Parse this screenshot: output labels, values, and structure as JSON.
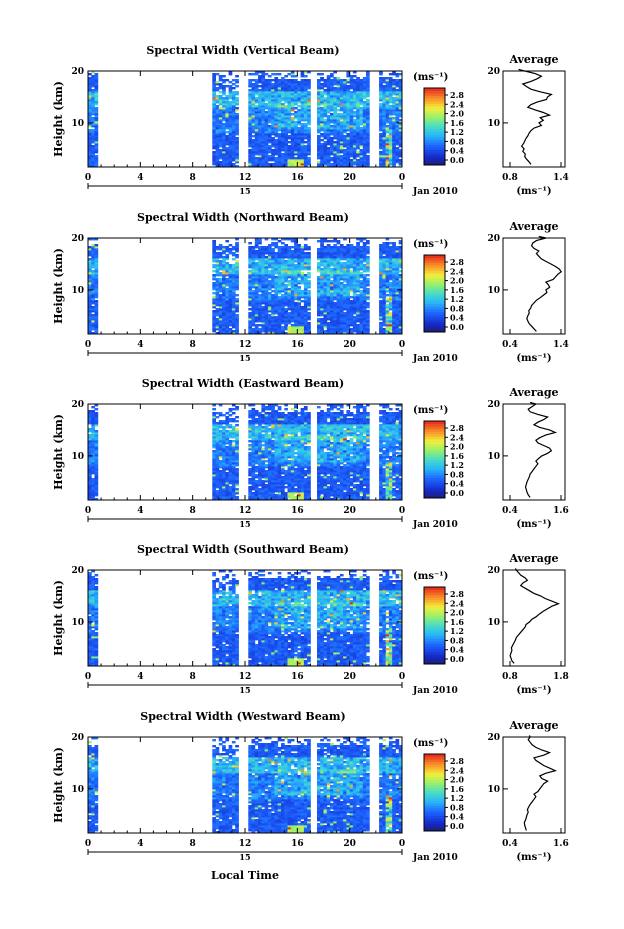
{
  "figure": {
    "xlabel": "Local Time",
    "date_label": "Jan 2010",
    "day_label": "15",
    "unit_label": "(ms⁻¹)",
    "ylabel": "Height (km)",
    "avg_title": "Average"
  },
  "chart_data": [
    {
      "type": "heatmap",
      "title": "Spectral Width (Vertical Beam)",
      "xlabel": "Local Time",
      "ylabel": "Height (km)",
      "x_ticks": [
        "0",
        "4",
        "8",
        "12",
        "16",
        "20",
        "0"
      ],
      "x_range_hours": [
        0,
        24
      ],
      "y_ticks": [
        "10",
        "20"
      ],
      "y_range_km": [
        1.5,
        20
      ],
      "colorbar": {
        "label": "(ms⁻¹)",
        "ticks": [
          "0.0",
          "0.4",
          "0.8",
          "1.2",
          "1.6",
          "2.0",
          "2.4",
          "2.8"
        ],
        "range": [
          0,
          3
        ]
      },
      "data_gaps_hours": [
        [
          0.8,
          9.5
        ],
        [
          11.6,
          12.2
        ],
        [
          17.0,
          17.6
        ],
        [
          21.6,
          22.2
        ]
      ],
      "average_profile": {
        "title": "Average",
        "xlabel": "(ms⁻¹)",
        "x_ticks": [
          "0.8",
          "1.4"
        ],
        "x_range": [
          0.6,
          1.6
        ],
        "y_ticks": [
          "10",
          "20"
        ],
        "x": [
          1.05,
          1.02,
          0.98,
          0.95,
          0.96,
          0.92,
          0.94,
          0.9,
          0.93,
          0.95,
          0.97,
          1.0,
          1.02,
          1.05,
          1.1,
          1.22,
          1.18,
          1.25,
          1.2,
          1.35,
          1.25,
          1.12,
          1.0,
          1.05,
          1.15,
          1.3,
          1.32,
          1.38,
          1.2,
          1.05,
          0.98,
          0.92,
          1.05,
          1.15,
          1.22,
          1.12,
          0.95,
          0.85
        ],
        "y": [
          2,
          2.5,
          3,
          3.5,
          4,
          4.5,
          5,
          5.5,
          6,
          6.5,
          7,
          7.5,
          8,
          8.5,
          9,
          9.5,
          10,
          10.5,
          11,
          11.5,
          12,
          12.5,
          13,
          13.5,
          14,
          14.5,
          15,
          15.5,
          16,
          16.5,
          17,
          17.5,
          18,
          18.5,
          19,
          19.5,
          20,
          20.3
        ]
      }
    },
    {
      "type": "heatmap",
      "title": "Spectral Width (Northward Beam)",
      "xlabel": "Local Time",
      "ylabel": "Height (km)",
      "x_ticks": [
        "0",
        "4",
        "8",
        "12",
        "16",
        "20",
        "0"
      ],
      "x_range_hours": [
        0,
        24
      ],
      "y_ticks": [
        "10",
        "20"
      ],
      "y_range_km": [
        1.5,
        20
      ],
      "colorbar": {
        "label": "(ms⁻¹)",
        "ticks": [
          "0.0",
          "0.4",
          "0.8",
          "1.2",
          "1.6",
          "2.0",
          "2.4",
          "2.8"
        ],
        "range": [
          0,
          3
        ]
      },
      "data_gaps_hours": [
        [
          0.8,
          9.5
        ],
        [
          11.6,
          12.2
        ],
        [
          17.0,
          17.6
        ],
        [
          21.6,
          22.2
        ]
      ],
      "average_profile": {
        "title": "Average",
        "xlabel": "(ms⁻¹)",
        "x_ticks": [
          "0.4",
          "1.4"
        ],
        "x_range": [
          0.2,
          1.5
        ],
        "y_ticks": [
          "10",
          "20"
        ],
        "x": [
          0.9,
          0.85,
          0.8,
          0.75,
          0.72,
          0.7,
          0.72,
          0.75,
          0.74,
          0.78,
          0.8,
          0.85,
          0.9,
          0.98,
          1.05,
          1.12,
          1.1,
          1.18,
          1.15,
          1.1,
          1.25,
          1.3,
          1.35,
          1.42,
          1.38,
          1.3,
          1.2,
          1.1,
          1.0,
          0.95,
          0.9,
          0.95,
          0.85,
          0.8,
          0.82,
          0.9,
          1.1,
          0.95
        ],
        "y": [
          2,
          2.5,
          3,
          3.5,
          4,
          4.5,
          5,
          5.5,
          6,
          6.5,
          7,
          7.5,
          8,
          8.5,
          9,
          9.5,
          10,
          10.5,
          11,
          11.5,
          12,
          12.5,
          13,
          13.5,
          14,
          14.5,
          15,
          15.5,
          16,
          16.5,
          17,
          17.5,
          18,
          18.5,
          19,
          19.5,
          20,
          20.3
        ]
      }
    },
    {
      "type": "heatmap",
      "title": "Spectral Width (Eastward Beam)",
      "xlabel": "Local Time",
      "ylabel": "Height (km)",
      "x_ticks": [
        "0",
        "4",
        "8",
        "12",
        "16",
        "20",
        "0"
      ],
      "x_range_hours": [
        0,
        24
      ],
      "y_ticks": [
        "10",
        "20"
      ],
      "y_range_km": [
        1.5,
        20
      ],
      "colorbar": {
        "label": "(ms⁻¹)",
        "ticks": [
          "0.0",
          "0.4",
          "0.8",
          "1.2",
          "1.6",
          "2.0",
          "2.4",
          "2.8"
        ],
        "range": [
          0,
          3
        ]
      },
      "data_gaps_hours": [
        [
          0.8,
          9.5
        ],
        [
          11.6,
          12.2
        ],
        [
          17.0,
          17.6
        ],
        [
          21.6,
          22.2
        ]
      ],
      "average_profile": {
        "title": "Average",
        "xlabel": "(ms⁻¹)",
        "x_ticks": [
          "0.4",
          "1.6"
        ],
        "x_range": [
          0.2,
          1.8
        ],
        "y_ticks": [
          "10",
          "20"
        ],
        "x": [
          0.9,
          0.85,
          0.82,
          0.8,
          0.78,
          0.8,
          0.82,
          0.85,
          0.88,
          0.9,
          0.95,
          1.0,
          1.05,
          1.1,
          1.05,
          1.12,
          1.2,
          1.35,
          1.45,
          1.4,
          1.25,
          1.1,
          1.05,
          1.15,
          1.3,
          1.55,
          1.4,
          1.15,
          1.0,
          1.1,
          1.25,
          1.35,
          1.1,
          0.9,
          0.85,
          0.95,
          1.05,
          0.9
        ],
        "y": [
          2,
          2.5,
          3,
          3.5,
          4,
          4.5,
          5,
          5.5,
          6,
          6.5,
          7,
          7.5,
          8,
          8.5,
          9,
          9.5,
          10,
          10.5,
          11,
          11.5,
          12,
          12.5,
          13,
          13.5,
          14,
          14.5,
          15,
          15.5,
          16,
          16.5,
          17,
          17.5,
          18,
          18.5,
          19,
          19.5,
          20,
          20.3
        ]
      }
    },
    {
      "type": "heatmap",
      "title": "Spectral Width (Southward Beam)",
      "xlabel": "Local Time",
      "ylabel": "Height (km)",
      "x_ticks": [
        "0",
        "4",
        "8",
        "12",
        "16",
        "20",
        "0"
      ],
      "x_range_hours": [
        0,
        24
      ],
      "y_ticks": [
        "10",
        "20"
      ],
      "y_range_km": [
        1.5,
        20
      ],
      "colorbar": {
        "label": "(ms⁻¹)",
        "ticks": [
          "0.0",
          "0.4",
          "0.8",
          "1.2",
          "1.6",
          "2.0",
          "2.4",
          "2.8"
        ],
        "range": [
          0,
          3
        ]
      },
      "data_gaps_hours": [
        [
          0.8,
          9.5
        ],
        [
          11.6,
          12.2
        ],
        [
          17.0,
          17.6
        ],
        [
          21.6,
          22.2
        ]
      ],
      "average_profile": {
        "title": "Average",
        "xlabel": "(ms⁻¹)",
        "x_ticks": [
          "0.8",
          "1.8"
        ],
        "x_range": [
          0.6,
          2.0
        ],
        "y_ticks": [
          "10",
          "20"
        ],
        "x": [
          0.85,
          0.8,
          0.78,
          0.76,
          0.78,
          0.8,
          0.79,
          0.82,
          0.85,
          0.88,
          0.9,
          0.95,
          1.0,
          1.05,
          1.1,
          1.12,
          1.2,
          1.25,
          1.35,
          1.42,
          1.5,
          1.6,
          1.7,
          1.85,
          1.7,
          1.55,
          1.45,
          1.3,
          1.2,
          1.1,
          1.0,
          1.05,
          1.15,
          1.1,
          1.0,
          0.95,
          0.9,
          0.88
        ],
        "y": [
          2,
          2.5,
          3,
          3.5,
          4,
          4.5,
          5,
          5.5,
          6,
          6.5,
          7,
          7.5,
          8,
          8.5,
          9,
          9.5,
          10,
          10.5,
          11,
          11.5,
          12,
          12.5,
          13,
          13.5,
          14,
          14.5,
          15,
          15.5,
          16,
          16.5,
          17,
          17.5,
          18,
          18.5,
          19,
          19.5,
          20,
          20.3
        ]
      }
    },
    {
      "type": "heatmap",
      "title": "Spectral Width (Westward Beam)",
      "xlabel": "Local Time",
      "ylabel": "Height (km)",
      "x_ticks": [
        "0",
        "4",
        "8",
        "12",
        "16",
        "20",
        "0"
      ],
      "x_range_hours": [
        0,
        24
      ],
      "y_ticks": [
        "10",
        "20"
      ],
      "y_range_km": [
        1.5,
        20
      ],
      "colorbar": {
        "label": "(ms⁻¹)",
        "ticks": [
          "0.0",
          "0.4",
          "0.8",
          "1.2",
          "1.6",
          "2.0",
          "2.4",
          "2.8"
        ],
        "range": [
          0,
          3
        ]
      },
      "data_gaps_hours": [
        [
          0.8,
          9.5
        ],
        [
          11.6,
          12.2
        ],
        [
          17.0,
          17.6
        ],
        [
          21.6,
          22.2
        ]
      ],
      "average_profile": {
        "title": "Average",
        "xlabel": "(ms⁻¹)",
        "x_ticks": [
          "0.4",
          "1.6"
        ],
        "x_range": [
          0.2,
          1.8
        ],
        "y_ticks": [
          "10",
          "20"
        ],
        "x": [
          0.8,
          0.78,
          0.76,
          0.75,
          0.78,
          0.8,
          0.82,
          0.85,
          0.83,
          0.86,
          0.9,
          0.95,
          1.0,
          1.05,
          1.0,
          1.1,
          1.15,
          1.2,
          1.25,
          1.35,
          1.2,
          1.15,
          1.3,
          1.55,
          1.4,
          1.25,
          1.15,
          1.05,
          1.0,
          1.25,
          1.4,
          1.2,
          1.05,
          0.95,
          0.9,
          0.85,
          0.9,
          0.88
        ],
        "y": [
          2,
          2.5,
          3,
          3.5,
          4,
          4.5,
          5,
          5.5,
          6,
          6.5,
          7,
          7.5,
          8,
          8.5,
          9,
          9.5,
          10,
          10.5,
          11,
          11.5,
          12,
          12.5,
          13,
          13.5,
          14,
          14.5,
          15,
          15.5,
          16,
          16.5,
          17,
          17.5,
          18,
          18.5,
          19,
          19.5,
          20,
          20.3
        ]
      }
    }
  ]
}
